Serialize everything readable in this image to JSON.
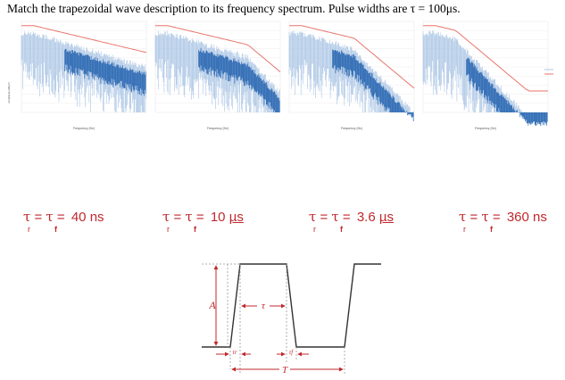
{
  "title": "Match the trapezoidal wave description to its frequency spectrum.  Pulse widths are τ = 100μs.",
  "spectrum_panels": [
    {
      "id": "p1",
      "x_label": "Frequency (Hz)",
      "rolloff_shape": "single-slope"
    },
    {
      "id": "p2",
      "x_label": "Frequency (Hz)",
      "rolloff_shape": "two-slope-late"
    },
    {
      "id": "p3",
      "x_label": "Frequency (Hz)",
      "rolloff_shape": "two-slope-mid"
    },
    {
      "id": "p4",
      "x_label": "Frequency (Hz)",
      "rolloff_shape": "two-slope-early"
    }
  ],
  "y_axis_label": "Amplitude (dBμV)",
  "colors": {
    "spectrum_blue": "#3a73b8",
    "spectrum_light": "#a9c4e4",
    "envelope_red": "#e8746a",
    "label_red": "#c0282d",
    "waveform_black": "#333333"
  },
  "rise_time_labels": [
    {
      "tau": "τ",
      "eq1": " = ",
      "tau2": "τ",
      "eq2": " = ",
      "value": "40 ns",
      "sub_r": "r",
      "sub_f": "f"
    },
    {
      "tau": "τ",
      "eq1": " = ",
      "tau2": "τ",
      "eq2": " = ",
      "value": "10 µs",
      "sub_r": "r",
      "sub_f": "f"
    },
    {
      "tau": "τ",
      "eq1": " = ",
      "tau2": "τ",
      "eq2": " = ",
      "value": "3.6 µs",
      "sub_r": "r",
      "sub_f": "f"
    },
    {
      "tau": "τ",
      "eq1": " = ",
      "tau2": "τ",
      "eq2": " = ",
      "value": "360 ns",
      "sub_r": "r",
      "sub_f": "f"
    }
  ],
  "waveform": {
    "amplitude_label": "A",
    "pulse_width_label": "τ",
    "rise_label": "τr",
    "fall_label": "τf",
    "period_label": "T"
  }
}
